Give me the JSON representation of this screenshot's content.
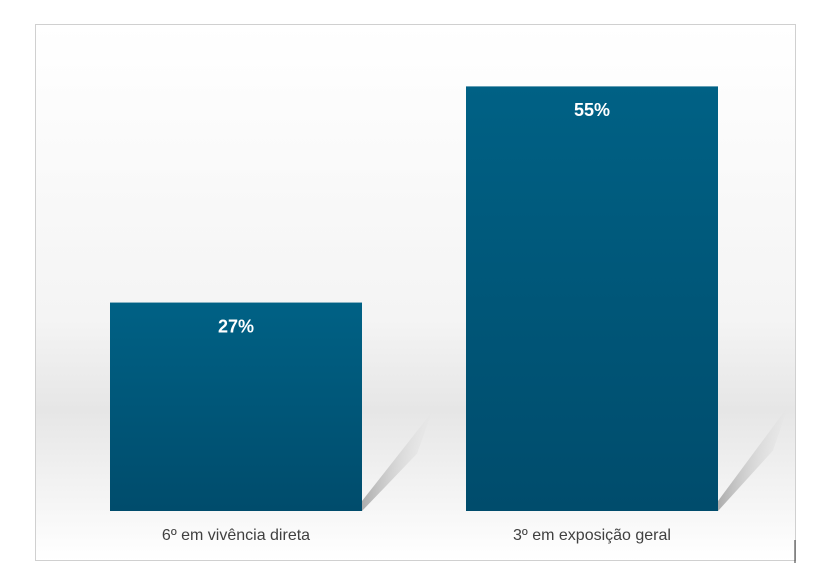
{
  "chart_data": {
    "type": "bar",
    "categories": [
      "6º em vivência direta",
      "3º em exposição geral"
    ],
    "values": [
      27,
      55
    ],
    "value_labels": [
      "27%",
      "55%"
    ],
    "color": "#005f84"
  }
}
